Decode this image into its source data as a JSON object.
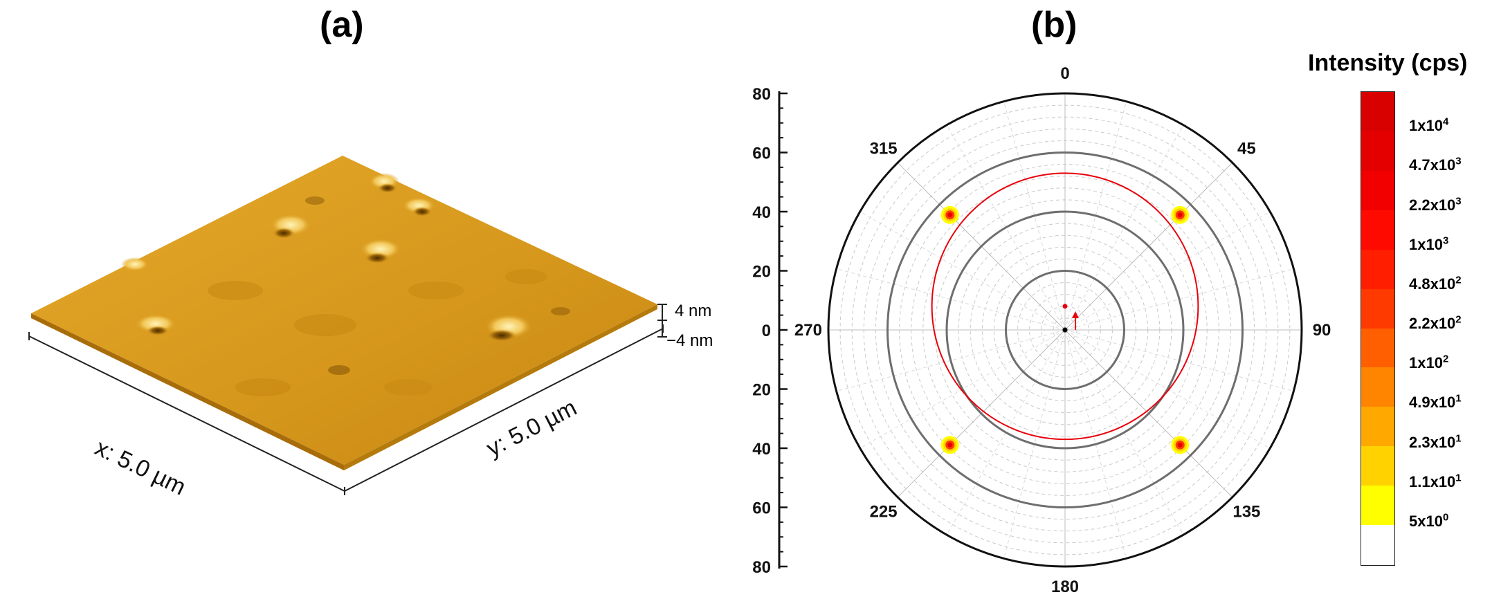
{
  "panel_a": {
    "label": "(a)",
    "x_axis_label": "x: 5.0 µm",
    "y_axis_label": "y: 5.0 µm",
    "z_scale_max": "4 nm",
    "z_scale_min": "−4 nm",
    "surface_color": "#d79a1c"
  },
  "panel_b": {
    "label": "(b)",
    "chart_data": {
      "type": "polar",
      "angle_ticks": [
        "0",
        "45",
        "90",
        "135",
        "180",
        "225",
        "270",
        "315"
      ],
      "radial_axis_ticks": [
        "80",
        "60",
        "40",
        "20",
        "0",
        "20",
        "40",
        "60",
        "80"
      ],
      "radial_range": [
        0,
        80
      ],
      "bold_rings_r": [
        20,
        40,
        60
      ],
      "red_circle": {
        "color": "#e8000b",
        "center_r": 8,
        "center_angle": 0,
        "radius": 45
      },
      "peaks": [
        {
          "psi": 45,
          "chi": 55
        },
        {
          "psi": 135,
          "chi": 55
        },
        {
          "psi": 225,
          "chi": 55
        },
        {
          "psi": 315,
          "chi": 55
        }
      ],
      "colorbar": {
        "title": "Intensity (cps)",
        "labels": [
          {
            "base": "1x10",
            "exp": "4"
          },
          {
            "base": "4.7x10",
            "exp": "3"
          },
          {
            "base": "2.2x10",
            "exp": "3"
          },
          {
            "base": "1x10",
            "exp": "3"
          },
          {
            "base": "4.8x10",
            "exp": "2"
          },
          {
            "base": "2.2x10",
            "exp": "2"
          },
          {
            "base": "1x10",
            "exp": "2"
          },
          {
            "base": "4.9x10",
            "exp": "1"
          },
          {
            "base": "2.3x10",
            "exp": "1"
          },
          {
            "base": "1.1x10",
            "exp": "1"
          },
          {
            "base": "5x10",
            "exp": "0"
          }
        ],
        "colors": [
          "#ffffff",
          "#ffff00",
          "#ffd200",
          "#ffa800",
          "#ff8400",
          "#ff5f00",
          "#ff3a00",
          "#ff1e00",
          "#ff0a00",
          "#f20000",
          "#e50000",
          "#d90000"
        ]
      }
    }
  }
}
